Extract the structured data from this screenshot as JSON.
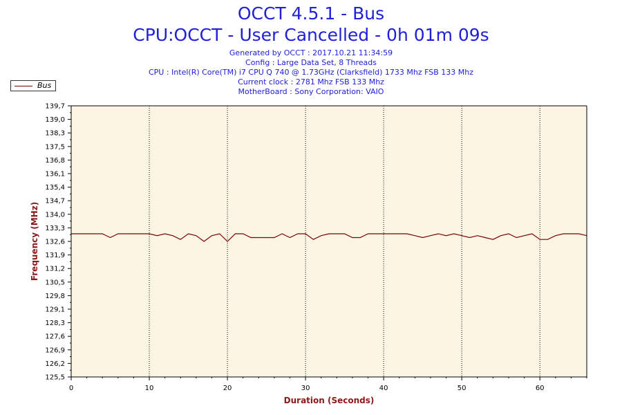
{
  "header": {
    "title_line1": "OCCT 4.5.1 - Bus",
    "title_line2": "CPU:OCCT - User Cancelled - 0h 01m 09s",
    "info": [
      "Generated by OCCT : 2017.10.21 11:34:59",
      "Config : Large Data Set, 8 Threads",
      "CPU : Intel(R) Core(TM) i7 CPU Q 740 @ 1.73GHz (Clarksfield) 1733 Mhz FSB 133 Mhz",
      "Current clock : 2781 Mhz FSB 133 Mhz",
      "MotherBoard : Sony Corporation: VAIO"
    ]
  },
  "colors": {
    "title": "#2020d8",
    "plot_background": "#fdf5e4",
    "series": "#7a0000",
    "axis_title": "#8b1a1a"
  },
  "chart_data": {
    "type": "line",
    "xlabel": "Duration (Seconds)",
    "ylabel": "Frequency (MHz)",
    "xlim": [
      0,
      66
    ],
    "ylim": [
      125.5,
      139.7
    ],
    "grid": "vertical dotted",
    "legend_position": "top-left",
    "y_ticks": [
      "125,5",
      "126,2",
      "126,9",
      "127,6",
      "128,3",
      "129,1",
      "129,8",
      "130,5",
      "131,2",
      "131,9",
      "132,6",
      "133,3",
      "134,0",
      "134,7",
      "135,4",
      "136,1",
      "136,8",
      "137,5",
      "138,3",
      "139,0",
      "139,7"
    ],
    "x_ticks": [
      "0",
      "10",
      "20",
      "30",
      "40",
      "50",
      "60"
    ],
    "series": [
      {
        "name": "Bus",
        "x": [
          0,
          1,
          2,
          3,
          4,
          5,
          6,
          7,
          8,
          9,
          10,
          11,
          12,
          13,
          14,
          15,
          16,
          17,
          18,
          19,
          20,
          21,
          22,
          23,
          24,
          25,
          26,
          27,
          28,
          29,
          30,
          31,
          32,
          33,
          34,
          35,
          36,
          37,
          38,
          39,
          40,
          41,
          42,
          43,
          44,
          45,
          46,
          47,
          48,
          49,
          50,
          51,
          52,
          53,
          54,
          55,
          56,
          57,
          58,
          59,
          60,
          61,
          62,
          63,
          64,
          65,
          66
        ],
        "values": [
          133.0,
          133.0,
          133.0,
          133.0,
          133.0,
          132.8,
          133.0,
          133.0,
          133.0,
          133.0,
          133.0,
          132.9,
          133.0,
          132.9,
          132.7,
          133.0,
          132.9,
          132.6,
          132.9,
          133.0,
          132.6,
          133.0,
          133.0,
          132.8,
          132.8,
          132.8,
          132.8,
          133.0,
          132.8,
          133.0,
          133.0,
          132.7,
          132.9,
          133.0,
          133.0,
          133.0,
          132.8,
          132.8,
          133.0,
          133.0,
          133.0,
          133.0,
          133.0,
          133.0,
          132.9,
          132.8,
          132.9,
          133.0,
          132.9,
          133.0,
          132.9,
          132.8,
          132.9,
          132.8,
          132.7,
          132.9,
          133.0,
          132.8,
          132.9,
          133.0,
          132.7,
          132.7,
          132.9,
          133.0,
          133.0,
          133.0,
          132.9
        ]
      }
    ]
  }
}
